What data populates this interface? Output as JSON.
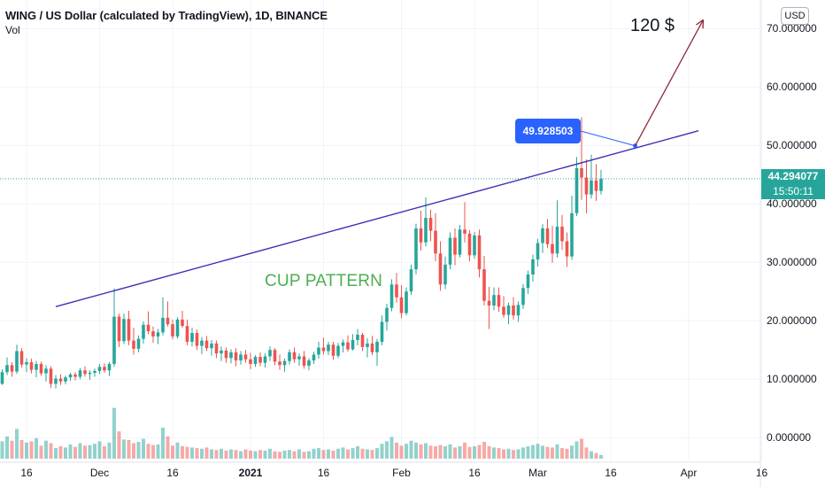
{
  "header": {
    "title": "WING / US Dollar (calculated by TradingView), 1D, BINANCE",
    "indicator": "Vol"
  },
  "currency": "USD",
  "price_tag": {
    "price": "44.294077",
    "countdown": "15:50:11"
  },
  "annotations": {
    "callout": "49.928503",
    "target": "120 $",
    "pattern": "CUP PATTERN"
  },
  "colors": {
    "up": "#26a69a",
    "down": "#ef5350",
    "trendline": "#3f2fb3",
    "arrow": "#8e2b3d",
    "callout": "#2962ff",
    "pattern_text": "#4caf50",
    "price_line": "#26a69a"
  },
  "chart_data": {
    "type": "candlestick",
    "y_ticks": [
      "0.000000",
      "10.000000",
      "20.000000",
      "30.000000",
      "40.000000",
      "50.000000",
      "60.000000",
      "70.000000"
    ],
    "y_tick_values": [
      0,
      10,
      20,
      30,
      40,
      50,
      60,
      70
    ],
    "x_ticks": [
      "16",
      "Dec",
      "16",
      "2021",
      "16",
      "Feb",
      "16",
      "Mar",
      "16",
      "Apr",
      "16"
    ],
    "x_tick_dates": [
      "2020-11-16",
      "2020-12-01",
      "2020-12-16",
      "2021-01-01",
      "2021-01-16",
      "2021-02-01",
      "2021-02-16",
      "2021-03-01",
      "2021-03-16",
      "2021-04-01",
      "2021-04-16"
    ],
    "ylim": [
      -3,
      76
    ],
    "last_price": 44.294077,
    "candles": {
      "start_date": "2020-11-09",
      "ohlc": [
        [
          8.5,
          10.0,
          7.6,
          9.6
        ],
        [
          9.6,
          10.6,
          8.8,
          9.2
        ],
        [
          9.2,
          11.7,
          9.0,
          11.2
        ],
        [
          11.2,
          13.7,
          10.7,
          12.4
        ],
        [
          12.4,
          12.9,
          10.4,
          11.3
        ],
        [
          11.3,
          15.9,
          10.9,
          14.8
        ],
        [
          14.8,
          15.3,
          12.0,
          12.5
        ],
        [
          12.5,
          13.6,
          11.2,
          12.9
        ],
        [
          12.9,
          13.5,
          11.0,
          11.6
        ],
        [
          11.6,
          13.1,
          10.3,
          12.6
        ],
        [
          12.6,
          13.0,
          10.6,
          11.0
        ],
        [
          11.0,
          12.4,
          9.6,
          11.8
        ],
        [
          11.8,
          12.2,
          8.5,
          9.2
        ],
        [
          9.2,
          10.7,
          8.4,
          10.1
        ],
        [
          10.1,
          10.8,
          9.0,
          9.6
        ],
        [
          9.6,
          10.6,
          9.1,
          10.3
        ],
        [
          10.3,
          11.1,
          9.7,
          10.8
        ],
        [
          10.8,
          11.2,
          9.8,
          10.4
        ],
        [
          10.4,
          11.9,
          10.0,
          11.5
        ],
        [
          11.5,
          12.2,
          10.4,
          10.9
        ],
        [
          10.9,
          11.5,
          9.9,
          11.1
        ],
        [
          11.1,
          11.8,
          10.4,
          11.4
        ],
        [
          11.4,
          12.6,
          10.9,
          12.1
        ],
        [
          12.1,
          12.7,
          11.1,
          11.5
        ],
        [
          11.5,
          12.9,
          10.5,
          12.6
        ],
        [
          12.6,
          25.5,
          12.1,
          20.7
        ],
        [
          20.7,
          21.2,
          15.5,
          16.5
        ],
        [
          16.5,
          21.2,
          16.0,
          20.3
        ],
        [
          20.3,
          21.7,
          15.8,
          16.6
        ],
        [
          16.6,
          18.8,
          14.2,
          15.2
        ],
        [
          15.2,
          17.5,
          14.6,
          16.9
        ],
        [
          16.9,
          19.9,
          16.1,
          19.3
        ],
        [
          19.3,
          21.6,
          17.7,
          18.2
        ],
        [
          18.2,
          19.0,
          16.2,
          17.3
        ],
        [
          17.3,
          18.6,
          16.0,
          18.0
        ],
        [
          18.0,
          24.0,
          17.5,
          20.5
        ],
        [
          20.5,
          23.3,
          19.0,
          19.4
        ],
        [
          19.4,
          20.2,
          16.8,
          17.3
        ],
        [
          17.3,
          20.6,
          16.9,
          20.2
        ],
        [
          20.2,
          21.7,
          18.8,
          19.1
        ],
        [
          19.1,
          20.2,
          15.8,
          16.4
        ],
        [
          16.4,
          18.8,
          15.6,
          17.9
        ],
        [
          17.9,
          18.5,
          15.0,
          15.7
        ],
        [
          15.7,
          17.2,
          14.3,
          16.6
        ],
        [
          16.6,
          17.4,
          14.8,
          15.3
        ],
        [
          15.3,
          16.7,
          14.0,
          16.1
        ],
        [
          16.1,
          16.6,
          13.6,
          14.4
        ],
        [
          14.4,
          15.6,
          13.1,
          14.9
        ],
        [
          14.9,
          15.4,
          12.8,
          13.6
        ],
        [
          13.6,
          15.1,
          12.7,
          14.6
        ],
        [
          14.6,
          15.3,
          12.2,
          13.2
        ],
        [
          13.2,
          14.8,
          12.5,
          14.2
        ],
        [
          14.2,
          15.0,
          12.8,
          13.4
        ],
        [
          13.4,
          14.5,
          11.7,
          12.6
        ],
        [
          12.6,
          14.1,
          12.1,
          13.8
        ],
        [
          13.8,
          14.6,
          12.2,
          12.8
        ],
        [
          12.8,
          14.4,
          12.0,
          13.9
        ],
        [
          13.9,
          15.6,
          13.1,
          15.0
        ],
        [
          15.0,
          15.3,
          12.4,
          13.0
        ],
        [
          13.0,
          14.2,
          11.6,
          12.4
        ],
        [
          12.4,
          13.5,
          11.2,
          13.1
        ],
        [
          13.1,
          15.1,
          12.5,
          14.6
        ],
        [
          14.6,
          15.4,
          12.8,
          13.4
        ],
        [
          13.4,
          14.4,
          12.3,
          13.9
        ],
        [
          13.9,
          14.8,
          11.8,
          12.3
        ],
        [
          12.3,
          13.6,
          11.5,
          13.2
        ],
        [
          13.2,
          14.7,
          12.6,
          14.2
        ],
        [
          14.2,
          16.4,
          13.5,
          15.4
        ],
        [
          15.4,
          17.1,
          14.2,
          14.8
        ],
        [
          14.8,
          16.4,
          14.1,
          15.9
        ],
        [
          15.9,
          16.4,
          13.3,
          14.0
        ],
        [
          14.0,
          16.2,
          13.6,
          15.7
        ],
        [
          15.7,
          16.8,
          14.6,
          16.3
        ],
        [
          16.3,
          17.5,
          14.7,
          15.1
        ],
        [
          15.1,
          17.7,
          14.9,
          16.7
        ],
        [
          16.7,
          18.6,
          15.8,
          17.6
        ],
        [
          17.6,
          17.9,
          14.8,
          15.5
        ],
        [
          15.5,
          17.0,
          13.7,
          16.1
        ],
        [
          16.1,
          17.4,
          14.1,
          14.6
        ],
        [
          14.6,
          16.9,
          12.3,
          16.4
        ],
        [
          16.4,
          20.9,
          15.8,
          19.8
        ],
        [
          19.8,
          22.9,
          18.3,
          22.2
        ],
        [
          22.2,
          27.1,
          21.6,
          26.2
        ],
        [
          26.2,
          28.2,
          23.1,
          24.0
        ],
        [
          24.0,
          26.1,
          20.4,
          21.3
        ],
        [
          21.3,
          25.7,
          20.9,
          25.0
        ],
        [
          25.0,
          29.6,
          24.4,
          28.8
        ],
        [
          28.8,
          36.6,
          27.9,
          35.8
        ],
        [
          35.8,
          38.8,
          32.0,
          33.4
        ],
        [
          33.4,
          41.1,
          32.7,
          37.6
        ],
        [
          37.6,
          39.0,
          33.6,
          35.4
        ],
        [
          35.4,
          38.4,
          30.2,
          31.5
        ],
        [
          31.5,
          33.6,
          25.1,
          26.2
        ],
        [
          26.2,
          31.0,
          25.4,
          29.6
        ],
        [
          29.6,
          35.1,
          28.8,
          34.2
        ],
        [
          34.2,
          35.8,
          29.5,
          31.3
        ],
        [
          31.3,
          36.4,
          30.8,
          35.6
        ],
        [
          35.6,
          40.3,
          33.4,
          34.9
        ],
        [
          34.9,
          35.5,
          30.2,
          31.2
        ],
        [
          31.2,
          35.2,
          30.6,
          34.6
        ],
        [
          34.6,
          35.6,
          27.4,
          28.8
        ],
        [
          28.8,
          31.1,
          22.6,
          23.4
        ],
        [
          23.4,
          25.8,
          18.6,
          22.6
        ],
        [
          22.6,
          25.7,
          21.8,
          24.4
        ],
        [
          24.4,
          25.7,
          21.5,
          22.4
        ],
        [
          22.4,
          24.2,
          20.5,
          21.0
        ],
        [
          21.0,
          23.1,
          19.4,
          22.6
        ],
        [
          22.6,
          24.0,
          20.2,
          20.9
        ],
        [
          20.9,
          23.3,
          19.8,
          22.7
        ],
        [
          22.7,
          26.3,
          22.0,
          25.6
        ],
        [
          25.6,
          28.6,
          24.6,
          27.9
        ],
        [
          27.9,
          31.3,
          26.7,
          30.5
        ],
        [
          30.5,
          34.0,
          29.3,
          33.3
        ],
        [
          33.3,
          36.5,
          31.6,
          35.8
        ],
        [
          35.8,
          37.4,
          32.4,
          33.1
        ],
        [
          33.1,
          36.2,
          29.9,
          31.5
        ],
        [
          31.5,
          40.6,
          30.8,
          36.1
        ],
        [
          36.1,
          38.1,
          32.1,
          33.6
        ],
        [
          33.6,
          35.1,
          29.2,
          31.0
        ],
        [
          31.0,
          41.4,
          30.4,
          38.4
        ],
        [
          38.4,
          48.0,
          37.9,
          46.1
        ],
        [
          46.1,
          54.8,
          40.7,
          44.5
        ],
        [
          44.5,
          47.6,
          38.4,
          41.6
        ],
        [
          41.6,
          48.4,
          40.9,
          44.0
        ],
        [
          44.0,
          46.8,
          40.5,
          42.2
        ],
        [
          42.2,
          45.8,
          41.6,
          44.3
        ]
      ],
      "volume": [
        2.4,
        3.2,
        2.8,
        3.6,
        2.9,
        4.8,
        3.0,
        2.6,
        2.8,
        3.3,
        2.1,
        2.9,
        2.5,
        1.7,
        2.0,
        1.8,
        2.3,
        1.9,
        2.5,
        2.1,
        2.2,
        2.4,
        2.8,
        2.0,
        2.6,
        8.2,
        4.4,
        3.1,
        3.0,
        2.5,
        2.7,
        3.2,
        2.4,
        2.2,
        2.3,
        5.0,
        3.6,
        2.1,
        2.6,
        2.0,
        1.9,
        1.8,
        1.7,
        1.6,
        1.8,
        1.5,
        1.4,
        1.6,
        1.3,
        1.5,
        1.4,
        1.2,
        1.5,
        1.3,
        1.2,
        1.4,
        1.3,
        1.6,
        1.2,
        1.1,
        1.3,
        1.4,
        1.2,
        1.5,
        1.1,
        1.2,
        1.6,
        1.7,
        1.4,
        1.5,
        1.3,
        1.6,
        1.8,
        1.5,
        1.7,
        2.0,
        1.6,
        1.5,
        1.4,
        1.7,
        2.4,
        2.8,
        3.5,
        2.6,
        2.1,
        2.4,
        2.9,
        2.6,
        2.3,
        2.5,
        2.1,
        2.0,
        2.2,
        2.0,
        2.3,
        1.8,
        2.0,
        2.6,
        1.9,
        2.0,
        2.2,
        2.7,
        2.0,
        1.8,
        1.7,
        1.5,
        1.6,
        1.4,
        1.5,
        1.8,
        2.0,
        2.2,
        2.4,
        2.1,
        1.9,
        1.8,
        2.3,
        1.7,
        1.6,
        2.1,
        2.8,
        3.2,
        1.8,
        1.2,
        0.9,
        0.6
      ]
    },
    "trendline": {
      "from": {
        "date": "2020-11-22",
        "price": 22.4
      },
      "to": {
        "date": "2021-04-03",
        "price": 52.5
      }
    },
    "callout_point": {
      "date": "2021-03-21",
      "price": 49.93
    },
    "target_arrow": {
      "from": {
        "date": "2021-03-21",
        "price": 49.93
      },
      "to": {
        "date": "2021-04-04",
        "price": 71.5
      }
    }
  }
}
